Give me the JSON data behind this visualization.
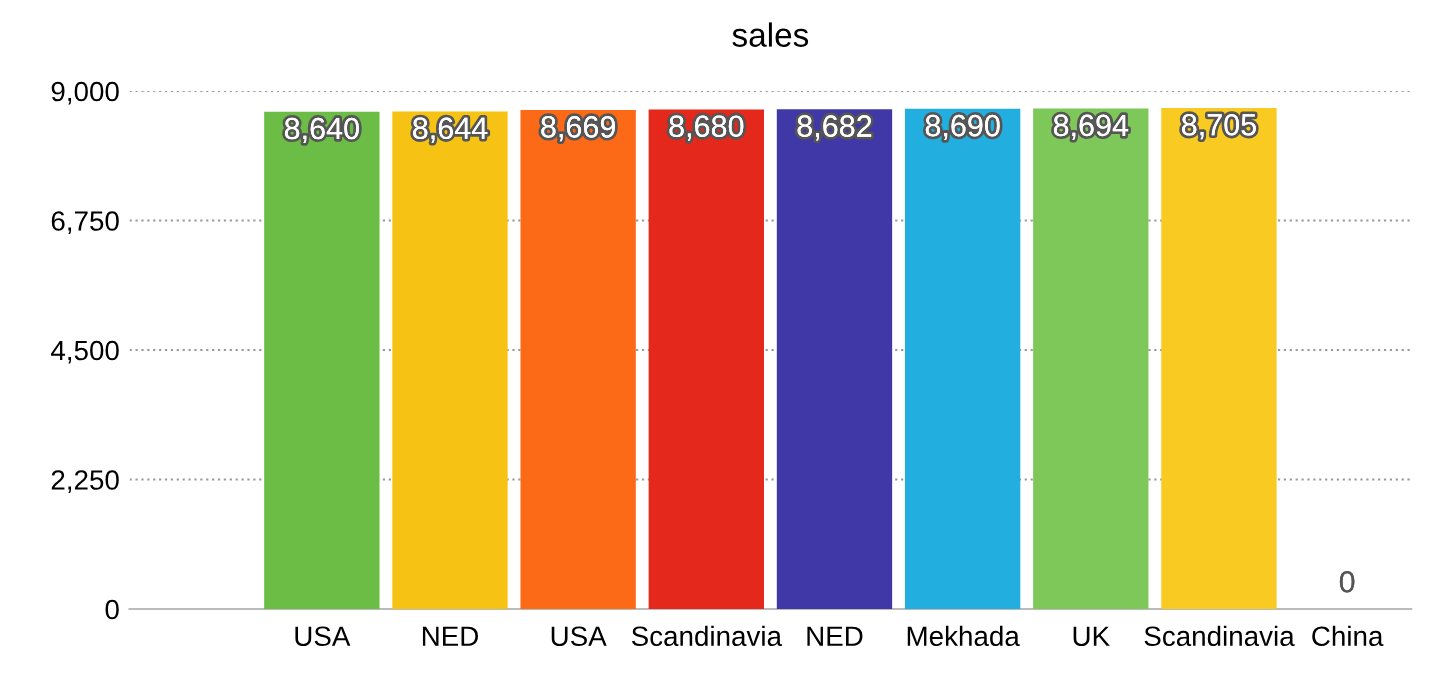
{
  "chart_data": {
    "type": "bar",
    "title": "sales",
    "categories": [
      null,
      "USA",
      "NED",
      "USA",
      "Scandinavia",
      "NED",
      "Mekhada",
      "UK",
      "Scandinavia",
      "China"
    ],
    "values": [
      null,
      8640,
      8644,
      8669,
      8680,
      8682,
      8690,
      8694,
      8705,
      0
    ],
    "value_labels": [
      null,
      "8,640",
      "8,644",
      "8,669",
      "8,680",
      "8,682",
      "8,690",
      "8,694",
      "8,705",
      "0"
    ],
    "colors": [
      "#cccccc",
      "#6bbd45",
      "#f6c314",
      "#fd6a17",
      "#e4281b",
      "#3f38a6",
      "#23aee0",
      "#7ec85a",
      "#f8ca22",
      "#cccccc"
    ],
    "ylim": [
      0,
      9000
    ],
    "yticks": [
      {
        "value": 0,
        "label": "0"
      },
      {
        "value": 2250,
        "label": "2,250"
      },
      {
        "value": 4500,
        "label": "4,500"
      },
      {
        "value": 6750,
        "label": "6,750"
      },
      {
        "value": 9000,
        "label": "9,000"
      }
    ],
    "grid": "y"
  }
}
